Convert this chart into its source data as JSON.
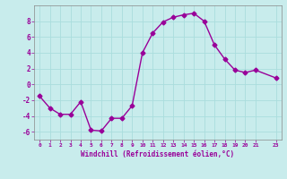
{
  "x": [
    0,
    1,
    2,
    3,
    4,
    5,
    6,
    7,
    8,
    9,
    10,
    11,
    12,
    13,
    14,
    15,
    16,
    17,
    18,
    19,
    20,
    21,
    23
  ],
  "y": [
    -1.5,
    -3.0,
    -3.8,
    -3.8,
    -2.2,
    -5.8,
    -5.9,
    -4.3,
    -4.3,
    -2.7,
    4.0,
    6.5,
    7.9,
    8.5,
    8.8,
    9.0,
    8.0,
    5.0,
    3.2,
    1.8,
    1.5,
    1.8,
    0.8
  ],
  "line_color": "#990099",
  "marker": "D",
  "markersize": 2.5,
  "linewidth": 1.0,
  "bg_color": "#c8ecec",
  "grid_color": "#aadddd",
  "xlabel": "Windchill (Refroidissement éolien,°C)",
  "xlabel_color": "#990099",
  "tick_color": "#990099",
  "xlim": [
    -0.5,
    23.5
  ],
  "ylim": [
    -7,
    10
  ],
  "yticks": [
    -6,
    -4,
    -2,
    0,
    2,
    4,
    6,
    8
  ],
  "xticks": [
    0,
    1,
    2,
    3,
    4,
    5,
    6,
    7,
    8,
    9,
    10,
    11,
    12,
    13,
    14,
    15,
    16,
    17,
    18,
    19,
    20,
    21,
    23
  ],
  "xtick_labels": [
    "0",
    "1",
    "2",
    "3",
    "4",
    "5",
    "6",
    "7",
    "8",
    "9",
    "10",
    "11",
    "12",
    "13",
    "14",
    "15",
    "16",
    "17",
    "18",
    "19",
    "20",
    "21",
    "23"
  ]
}
